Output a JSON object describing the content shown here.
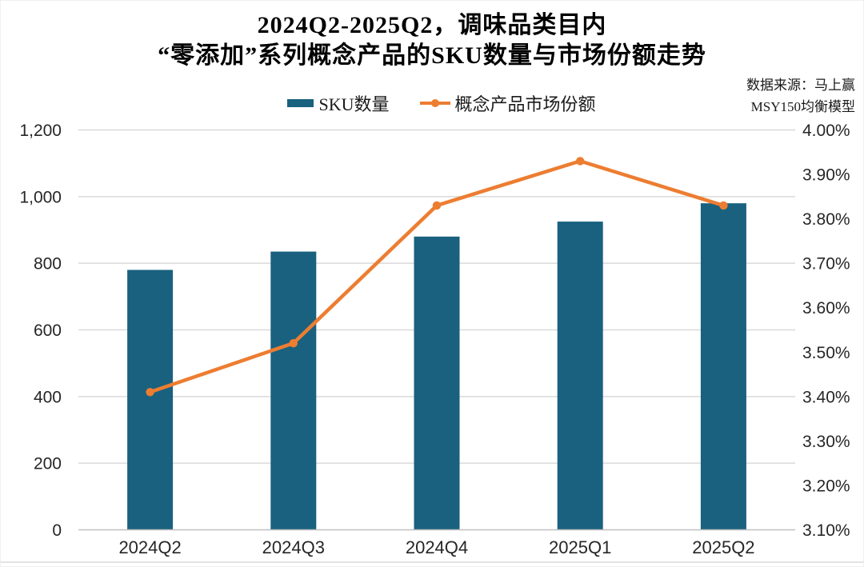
{
  "page": {
    "title_line1": "2024Q2-2025Q2，调味品类目内",
    "title_line2": "“零添加”系列概念产品的SKU数量与市场份额走势",
    "source_line1": "数据来源：马上赢",
    "source_line2": "MSY150均衡模型"
  },
  "legend": {
    "bar_label": "SKU数量",
    "line_label": "概念产品市场份额"
  },
  "colors": {
    "bar": "#19617F",
    "line": "#ED7D31",
    "grid": "#D9D9D9",
    "axis": "#BFBFBF",
    "label": "#262626"
  },
  "chart_data": {
    "type": "bar",
    "subtype": "combo-bar-line-dual-axis",
    "title": "2024Q2-2025Q2，调味品类目内“零添加”系列概念产品的SKU数量与市场份额走势",
    "categories": [
      "2024Q2",
      "2024Q3",
      "2024Q4",
      "2025Q1",
      "2025Q2"
    ],
    "series": [
      {
        "name": "SKU数量",
        "type": "bar",
        "axis": "left",
        "values": [
          780,
          835,
          880,
          925,
          980
        ]
      },
      {
        "name": "概念产品市场份额",
        "type": "line",
        "axis": "right",
        "unit": "%",
        "values": [
          3.41,
          3.52,
          3.83,
          3.93,
          3.83
        ]
      }
    ],
    "left_axis": {
      "min": 0,
      "max": 1200,
      "ticks": [
        {
          "v": 1200,
          "label": "1,200"
        },
        {
          "v": 1000,
          "label": "1,000"
        },
        {
          "v": 800,
          "label": "800"
        },
        {
          "v": 600,
          "label": "600"
        },
        {
          "v": 400,
          "label": "400"
        },
        {
          "v": 200,
          "label": "200"
        },
        {
          "v": 0,
          "label": "0"
        }
      ]
    },
    "right_axis": {
      "min": 3.1,
      "max": 4.0,
      "ticks": [
        {
          "v": 4.0,
          "label": "4.00%"
        },
        {
          "v": 3.9,
          "label": "3.90%"
        },
        {
          "v": 3.8,
          "label": "3.80%"
        },
        {
          "v": 3.7,
          "label": "3.70%"
        },
        {
          "v": 3.6,
          "label": "3.60%"
        },
        {
          "v": 3.5,
          "label": "3.50%"
        },
        {
          "v": 3.4,
          "label": "3.40%"
        },
        {
          "v": 3.3,
          "label": "3.30%"
        },
        {
          "v": 3.2,
          "label": "3.20%"
        },
        {
          "v": 3.1,
          "label": "3.10%"
        }
      ]
    },
    "grid": true,
    "legend_position": "top"
  }
}
